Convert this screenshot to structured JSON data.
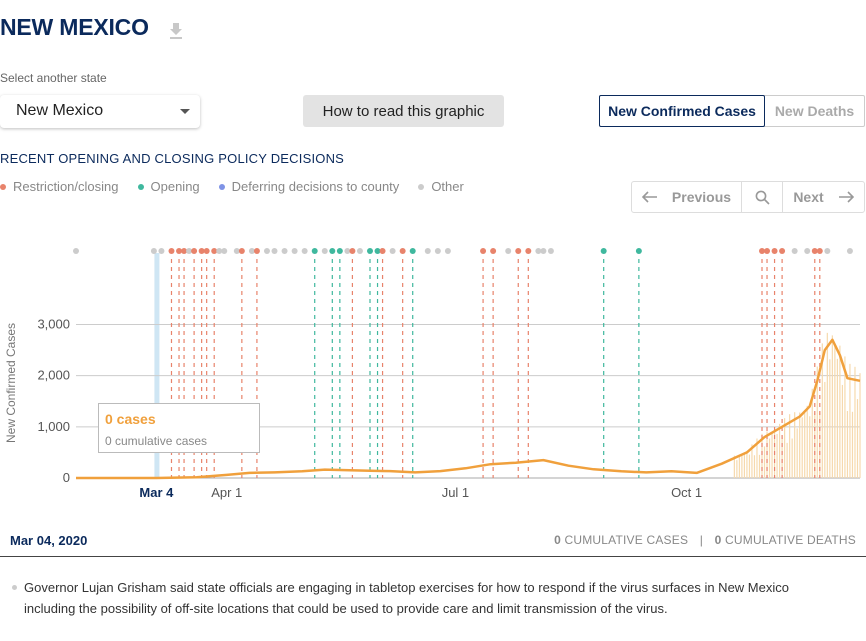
{
  "header": {
    "title": "NEW MEXICO",
    "download_icon": "download-icon"
  },
  "state_selector": {
    "label": "Select another state",
    "value": "New Mexico"
  },
  "how_to_button": {
    "label": "How to read this graphic"
  },
  "metric_toggle": {
    "active": "New Confirmed Cases",
    "inactive": "New Deaths"
  },
  "policy_heading": "RECENT OPENING AND CLOSING POLICY DECISIONS",
  "legend": [
    {
      "label": "Restriction/closing",
      "color": "#e8836b"
    },
    {
      "label": "Opening",
      "color": "#3fb89e"
    },
    {
      "label": "Deferring decisions to county",
      "color": "#7f93e6"
    },
    {
      "label": "Other",
      "color": "#cccccc"
    }
  ],
  "pager": {
    "prev_label": "Previous",
    "next_label": "Next",
    "search_icon": "search-icon"
  },
  "tooltip": {
    "main": "0 cases",
    "sub": "0 cumulative cases"
  },
  "selection": {
    "date": "Mar 04, 2020",
    "cases_value": "0",
    "cases_label": "CUMULATIVE CASES",
    "separator": "|",
    "deaths_value": "0",
    "deaths_label": "CUMULATIVE DEATHS"
  },
  "event_text": "Governor Lujan Grisham said state officials are engaging in tabletop exercises for how to respond if the virus surfaces in New Mexico including the possibility of off-site locations that could be used to provide care and limit transmission of the virus.",
  "chart_data": {
    "type": "line",
    "ylabel": "New Confirmed Cases",
    "ylim": [
      0,
      3500
    ],
    "yticks": [
      0,
      1000,
      2000,
      3000
    ],
    "ytick_labels": [
      "0",
      "1,000",
      "2,000",
      "3,000"
    ],
    "xlim": [
      "2020-02-01",
      "2020-12-09"
    ],
    "xticks": [
      {
        "date": "2020-03-04",
        "label": "Mar 4",
        "highlight": true
      },
      {
        "date": "2020-04-01",
        "label": "Apr 1",
        "highlight": false
      },
      {
        "date": "2020-07-01",
        "label": "Jul 1",
        "highlight": false
      },
      {
        "date": "2020-10-01",
        "label": "Oct 1",
        "highlight": false
      }
    ],
    "selected_date": "2020-03-04",
    "line_color": "#f0a03c",
    "series": [
      {
        "values": [
          [
            "2020-02-01",
            0
          ],
          [
            "2020-03-04",
            0
          ],
          [
            "2020-03-20",
            15
          ],
          [
            "2020-04-01",
            60
          ],
          [
            "2020-04-10",
            100
          ],
          [
            "2020-04-20",
            110
          ],
          [
            "2020-05-01",
            130
          ],
          [
            "2020-05-10",
            165
          ],
          [
            "2020-05-20",
            150
          ],
          [
            "2020-05-28",
            140
          ],
          [
            "2020-06-05",
            135
          ],
          [
            "2020-06-15",
            110
          ],
          [
            "2020-06-25",
            135
          ],
          [
            "2020-07-05",
            190
          ],
          [
            "2020-07-15",
            270
          ],
          [
            "2020-07-25",
            300
          ],
          [
            "2020-08-05",
            350
          ],
          [
            "2020-08-15",
            240
          ],
          [
            "2020-08-25",
            170
          ],
          [
            "2020-09-05",
            130
          ],
          [
            "2020-09-15",
            110
          ],
          [
            "2020-09-25",
            130
          ],
          [
            "2020-10-05",
            100
          ],
          [
            "2020-10-15",
            280
          ],
          [
            "2020-10-25",
            500
          ],
          [
            "2020-11-01",
            800
          ],
          [
            "2020-11-08",
            1000
          ],
          [
            "2020-11-15",
            1200
          ],
          [
            "2020-11-19",
            1400
          ],
          [
            "2020-11-22",
            1900
          ],
          [
            "2020-11-25",
            2500
          ],
          [
            "2020-11-28",
            2700
          ],
          [
            "2020-12-01",
            2400
          ],
          [
            "2020-12-04",
            1950
          ],
          [
            "2020-12-09",
            1900
          ]
        ]
      }
    ],
    "policy_events": [
      {
        "date": "2020-02-01",
        "type": "other",
        "line": false
      },
      {
        "date": "2020-03-03",
        "type": "other",
        "line": false
      },
      {
        "date": "2020-03-06",
        "type": "other",
        "line": false
      },
      {
        "date": "2020-03-10",
        "type": "restriction",
        "line": true
      },
      {
        "date": "2020-03-13",
        "type": "restriction",
        "line": true
      },
      {
        "date": "2020-03-15",
        "type": "restriction",
        "line": true
      },
      {
        "date": "2020-03-17",
        "type": "other",
        "line": false
      },
      {
        "date": "2020-03-19",
        "type": "restriction",
        "line": true
      },
      {
        "date": "2020-03-22",
        "type": "restriction",
        "line": true
      },
      {
        "date": "2020-03-24",
        "type": "restriction",
        "line": true
      },
      {
        "date": "2020-03-27",
        "type": "restriction",
        "line": true
      },
      {
        "date": "2020-03-29",
        "type": "other",
        "line": false
      },
      {
        "date": "2020-03-31",
        "type": "other",
        "line": false
      },
      {
        "date": "2020-04-05",
        "type": "other",
        "line": false
      },
      {
        "date": "2020-04-07",
        "type": "restriction",
        "line": true
      },
      {
        "date": "2020-04-11",
        "type": "other",
        "line": false
      },
      {
        "date": "2020-04-13",
        "type": "restriction",
        "line": true
      },
      {
        "date": "2020-04-17",
        "type": "other",
        "line": false
      },
      {
        "date": "2020-04-20",
        "type": "other",
        "line": false
      },
      {
        "date": "2020-04-24",
        "type": "other",
        "line": false
      },
      {
        "date": "2020-04-28",
        "type": "other",
        "line": false
      },
      {
        "date": "2020-05-02",
        "type": "other",
        "line": false
      },
      {
        "date": "2020-05-06",
        "type": "opening",
        "line": true
      },
      {
        "date": "2020-05-10",
        "type": "other",
        "line": false
      },
      {
        "date": "2020-05-13",
        "type": "opening",
        "line": true
      },
      {
        "date": "2020-05-16",
        "type": "opening",
        "line": true
      },
      {
        "date": "2020-05-19",
        "type": "other",
        "line": false
      },
      {
        "date": "2020-05-21",
        "type": "restriction",
        "line": true
      },
      {
        "date": "2020-05-24",
        "type": "other",
        "line": false
      },
      {
        "date": "2020-05-28",
        "type": "opening",
        "line": true
      },
      {
        "date": "2020-05-31",
        "type": "opening",
        "line": true
      },
      {
        "date": "2020-06-02",
        "type": "restriction",
        "line": true
      },
      {
        "date": "2020-06-06",
        "type": "other",
        "line": false
      },
      {
        "date": "2020-06-10",
        "type": "restriction",
        "line": true
      },
      {
        "date": "2020-06-14",
        "type": "opening",
        "line": true
      },
      {
        "date": "2020-06-20",
        "type": "other",
        "line": false
      },
      {
        "date": "2020-06-24",
        "type": "other",
        "line": false
      },
      {
        "date": "2020-06-28",
        "type": "other",
        "line": false
      },
      {
        "date": "2020-07-12",
        "type": "restriction",
        "line": true
      },
      {
        "date": "2020-07-16",
        "type": "restriction",
        "line": true
      },
      {
        "date": "2020-07-22",
        "type": "other",
        "line": false
      },
      {
        "date": "2020-07-26",
        "type": "restriction",
        "line": true
      },
      {
        "date": "2020-07-30",
        "type": "restriction",
        "line": true
      },
      {
        "date": "2020-08-03",
        "type": "other",
        "line": false
      },
      {
        "date": "2020-08-05",
        "type": "other",
        "line": false
      },
      {
        "date": "2020-08-08",
        "type": "other",
        "line": false
      },
      {
        "date": "2020-08-29",
        "type": "opening",
        "line": true
      },
      {
        "date": "2020-09-12",
        "type": "opening",
        "line": true
      },
      {
        "date": "2020-10-31",
        "type": "restriction",
        "line": true
      },
      {
        "date": "2020-11-02",
        "type": "restriction",
        "line": true
      },
      {
        "date": "2020-11-05",
        "type": "restriction",
        "line": true
      },
      {
        "date": "2020-11-08",
        "type": "restriction",
        "line": true
      },
      {
        "date": "2020-11-13",
        "type": "other",
        "line": false
      },
      {
        "date": "2020-11-18",
        "type": "other",
        "line": false
      },
      {
        "date": "2020-11-21",
        "type": "restriction",
        "line": true
      },
      {
        "date": "2020-11-23",
        "type": "restriction",
        "line": true
      },
      {
        "date": "2020-11-26",
        "type": "other",
        "line": false
      },
      {
        "date": "2020-12-05",
        "type": "other",
        "line": false
      }
    ]
  }
}
